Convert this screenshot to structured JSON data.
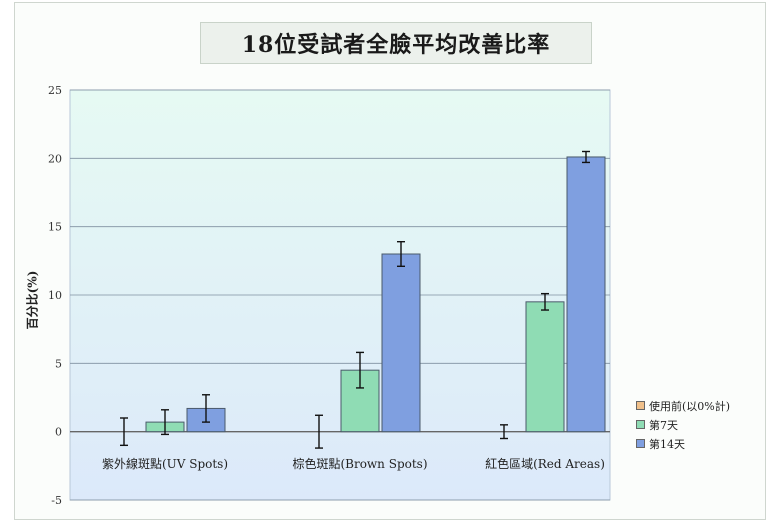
{
  "chart_data": {
    "type": "bar",
    "title": "18位受試者全臉平均改善比率",
    "xlabel": "",
    "ylabel": "百分比(%)",
    "ylim": [
      -5,
      25
    ],
    "yticks": [
      -5,
      0,
      5,
      10,
      15,
      20,
      25
    ],
    "grid": true,
    "legend_position": "bottom-right",
    "categories": [
      "紫外線斑點(UV Spots)",
      "棕色斑點(Brown Spots)",
      "紅色區域(Red Areas)"
    ],
    "series": [
      {
        "name": "使用前(以0%計)",
        "color": "#f0c08a",
        "values": [
          0,
          0,
          0
        ],
        "errors": [
          1.0,
          1.2,
          0.5
        ]
      },
      {
        "name": "第7天",
        "color": "#8fdcb4",
        "values": [
          0.7,
          4.5,
          9.5
        ],
        "errors": [
          0.9,
          1.3,
          0.6
        ]
      },
      {
        "name": "第14天",
        "color": "#7f9fe0",
        "values": [
          1.7,
          13.0,
          20.1
        ],
        "errors": [
          1.0,
          0.9,
          0.4
        ]
      }
    ]
  }
}
